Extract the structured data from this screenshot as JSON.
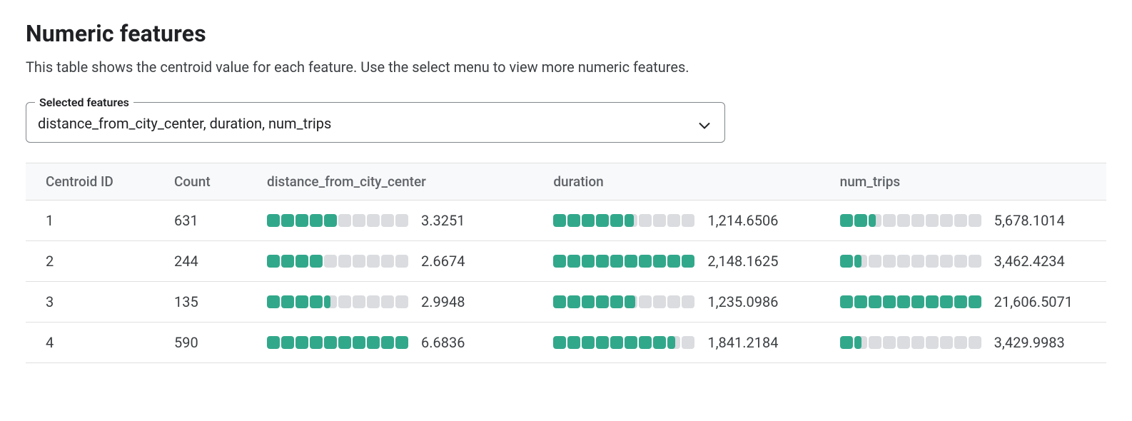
{
  "title": "Numeric features",
  "subtitle": "This table shows the centroid value for each feature. Use the select menu to view more numeric features.",
  "select": {
    "label": "Selected features",
    "value": "distance_from_city_center, duration, num_trips"
  },
  "table": {
    "type": "table",
    "segments_per_bar": 10,
    "bar_fill_color": "#32a88b",
    "bar_empty_color": "#dadce0",
    "background_color": "#ffffff",
    "header_bg": "#f8f9fa",
    "row_border_color": "#e0e0e0",
    "header_text_color": "#5f6368",
    "cell_text_color": "#3c4043",
    "header_fontsize": 19,
    "cell_fontsize": 20,
    "columns": [
      {
        "key": "centroid_id",
        "label": "Centroid ID",
        "kind": "text"
      },
      {
        "key": "count",
        "label": "Count",
        "kind": "text"
      },
      {
        "key": "f0",
        "label": "distance_from_city_center",
        "kind": "feature"
      },
      {
        "key": "f1",
        "label": "duration",
        "kind": "feature"
      },
      {
        "key": "f2",
        "label": "num_trips",
        "kind": "feature"
      }
    ],
    "rows": [
      {
        "centroid_id": "1",
        "count": "631",
        "f0": {
          "display": "3.3251",
          "fill": 5.0
        },
        "f1": {
          "display": "1,214.6506",
          "fill": 5.7
        },
        "f2": {
          "display": "5,678.1014",
          "fill": 2.6
        }
      },
      {
        "centroid_id": "2",
        "count": "244",
        "f0": {
          "display": "2.6674",
          "fill": 4.0
        },
        "f1": {
          "display": "2,148.1625",
          "fill": 10.0
        },
        "f2": {
          "display": "3,462.4234",
          "fill": 1.6
        }
      },
      {
        "centroid_id": "3",
        "count": "135",
        "f0": {
          "display": "2.9948",
          "fill": 4.5
        },
        "f1": {
          "display": "1,235.0986",
          "fill": 5.8
        },
        "f2": {
          "display": "21,606.5071",
          "fill": 10.0
        }
      },
      {
        "centroid_id": "4",
        "count": "590",
        "f0": {
          "display": "6.6836",
          "fill": 10.0
        },
        "f1": {
          "display": "1,841.2184",
          "fill": 8.6
        },
        "f2": {
          "display": "3,429.9983",
          "fill": 1.6
        }
      }
    ]
  }
}
